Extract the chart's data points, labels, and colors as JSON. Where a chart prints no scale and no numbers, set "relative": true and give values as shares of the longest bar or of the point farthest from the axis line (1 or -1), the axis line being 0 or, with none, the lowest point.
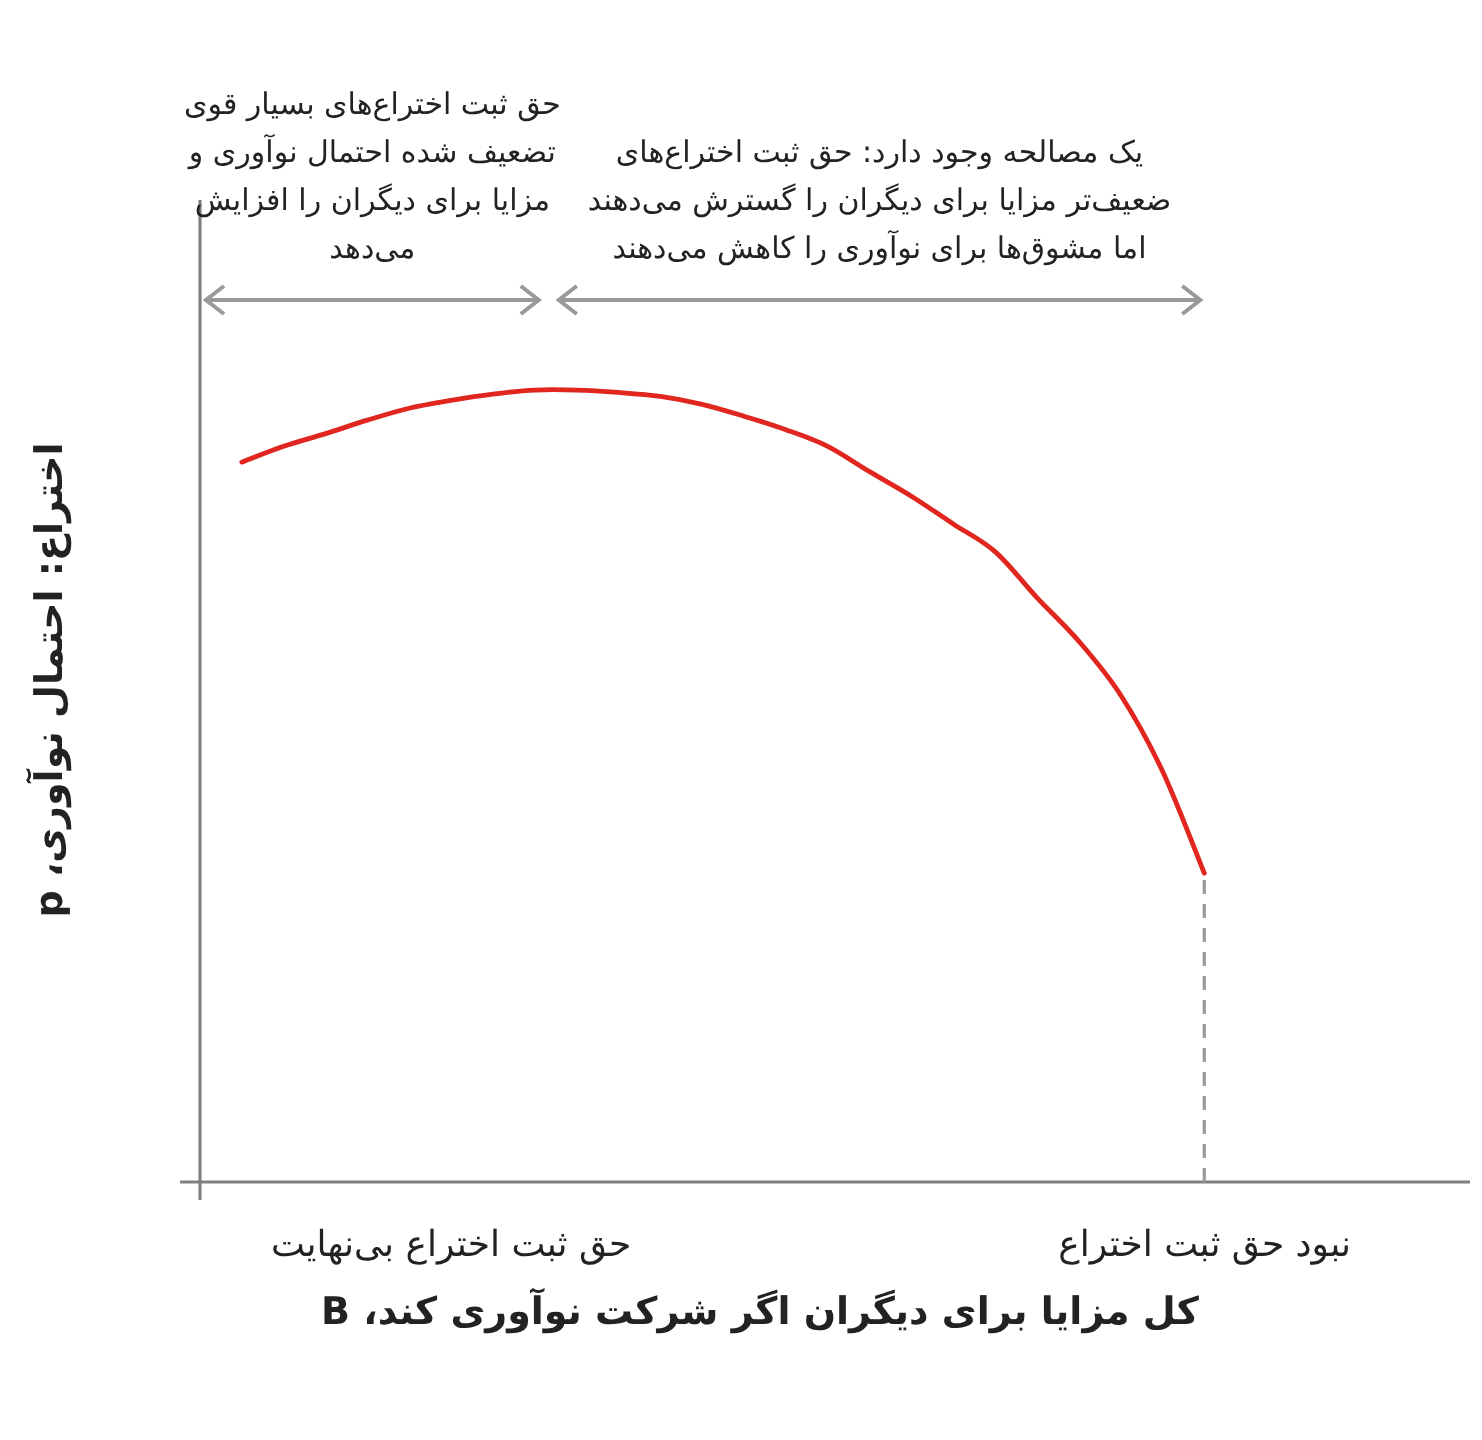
{
  "chart_data": {
    "type": "line",
    "relative": true,
    "xlabel": "کل مزایا برای دیگران اگر شرکت نوآوری کند، B",
    "ylabel": "اختراع: احتمال نوآوری، p",
    "categories": [
      null,
      null,
      null,
      null,
      null,
      null,
      "حق ثبت اختراع بی‌نهایت",
      null,
      null,
      null,
      null,
      null,
      null,
      null,
      null,
      null,
      null,
      null,
      null,
      null,
      null,
      null,
      null,
      null,
      "نبود حق ثبت اختراع",
      null,
      null,
      null,
      null,
      null,
      null
    ],
    "series": [
      {
        "color": "#e0261f",
        "values": [
          null,
          0.909,
          0.929,
          0.945,
          0.962,
          0.977,
          0.987,
          0.995,
          1.0,
          1.0,
          0.997,
          0.992,
          0.982,
          0.967,
          0.95,
          0.929,
          0.897,
          0.866,
          0.831,
          0.796,
          0.738,
          0.683,
          0.615,
          0.519,
          0.39,
          null,
          null,
          null,
          null,
          null,
          null
        ]
      }
    ],
    "annotations": [
      "حق ثبت اختراع‌های بسیار قوی تضعیف شده احتمال نوآوری و مزایا برای دیگران را افزایش می‌دهد",
      "یک مصالحه وجود دارد: حق ثبت اختراع‌های ضعیف‌تر مزایا برای دیگران را گسترش می‌دهند اما مشوق‌ها برای نوآوری را کاهش می‌دهند"
    ],
    "ref_lines": [
      {
        "axis": "x",
        "value": "نبود حق ثبت اختراع",
        "color": "#999999",
        "line_style": "dashed"
      }
    ]
  }
}
